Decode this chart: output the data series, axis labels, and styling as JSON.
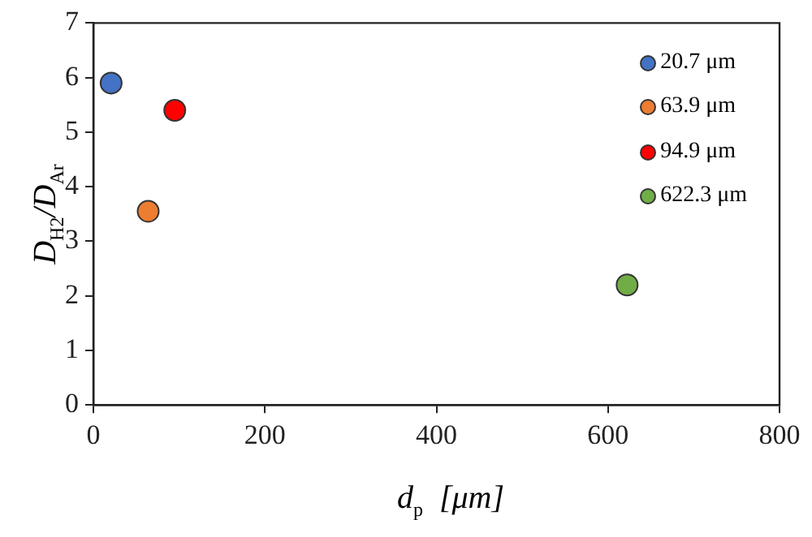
{
  "chart_data": {
    "type": "scatter",
    "xlabel": "d$_{p}$  [μm]",
    "ylabel": "D$_{H2}$/D$_{Ar}$",
    "series": [
      {
        "name": "20.7 μm",
        "color": "#4472c4",
        "x": [
          20.7
        ],
        "values": [
          5.9
        ]
      },
      {
        "name": "63.9 μm",
        "color": "#ed7d31",
        "x": [
          63.9
        ],
        "values": [
          3.55
        ]
      },
      {
        "name": "94.9 μm",
        "color": "#ff0000",
        "x": [
          94.9
        ],
        "values": [
          5.4
        ]
      },
      {
        "name": "622.3 μm",
        "color": "#70ad47",
        "x": [
          622.3
        ],
        "values": [
          2.2
        ]
      }
    ],
    "xlim": [
      0,
      800
    ],
    "xticks": [
      0,
      200,
      400,
      600,
      800
    ],
    "ylim": [
      0,
      7
    ],
    "yticks": [
      0,
      1,
      2,
      3,
      4,
      5,
      6,
      7
    ],
    "grid": false,
    "legend": "top right",
    "marker": "circle"
  }
}
